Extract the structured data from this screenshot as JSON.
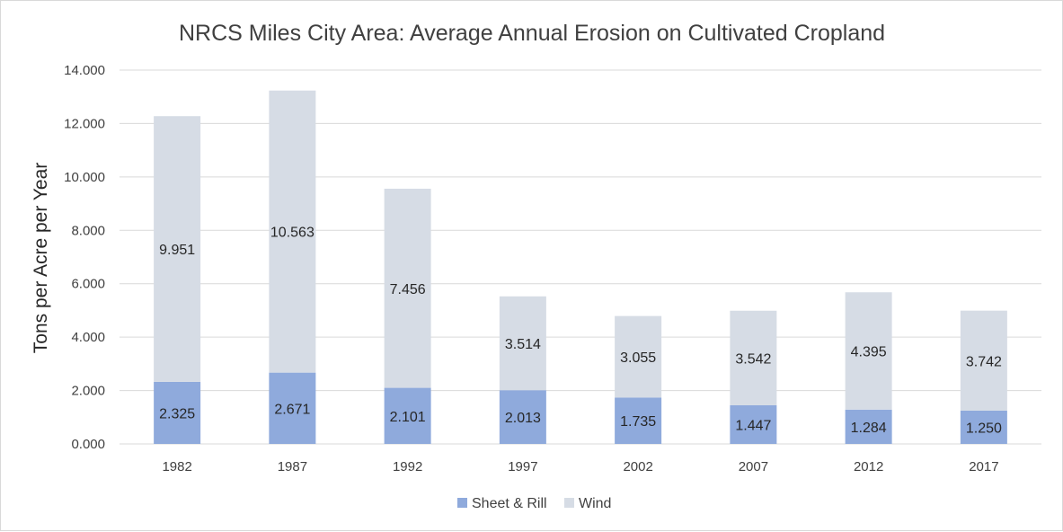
{
  "chart_data": {
    "type": "bar",
    "stacked": true,
    "title": "NRCS Miles City Area: Average Annual Erosion on Cultivated Cropland",
    "xlabel": "",
    "ylabel": "Tons per Acre per Year",
    "categories": [
      "1982",
      "1987",
      "1992",
      "1997",
      "2002",
      "2007",
      "2012",
      "2017"
    ],
    "series": [
      {
        "name": "Sheet & Rill",
        "color": "#8faadc",
        "values": [
          2.325,
          2.671,
          2.101,
          2.013,
          1.735,
          1.447,
          1.284,
          1.25
        ],
        "labels": [
          "2.325",
          "2.671",
          "2.101",
          "2.013",
          "1.735",
          "1.447",
          "1.284",
          "1.250"
        ]
      },
      {
        "name": "Wind",
        "color": "#d6dce5",
        "values": [
          9.951,
          10.563,
          7.456,
          3.514,
          3.055,
          3.542,
          4.395,
          3.742
        ],
        "labels": [
          "9.951",
          "10.563",
          "7.456",
          "3.514",
          "3.055",
          "3.542",
          "4.395",
          "3.742"
        ]
      }
    ],
    "ylim": [
      0,
      14
    ],
    "yticks": [
      0,
      2,
      4,
      6,
      8,
      10,
      12,
      14
    ],
    "ytick_labels": [
      "0.000",
      "2.000",
      "4.000",
      "6.000",
      "8.000",
      "10.000",
      "12.000",
      "14.000"
    ],
    "grid": true,
    "gridline_color": "#d9d9d9",
    "legend_position": "bottom"
  }
}
